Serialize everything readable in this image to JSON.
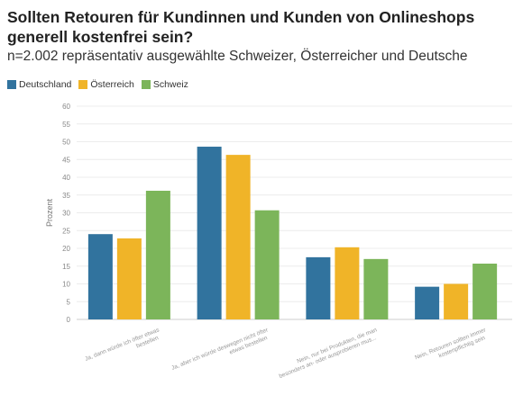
{
  "title": "Sollten Retouren für Kundinnen und Kunden von Onlineshops generell kostenfrei sein?",
  "subtitle": "n=2.002 repräsentativ ausgewählte Schweizer, Österreicher und Deutsche",
  "legend": [
    {
      "name": "Deutschland",
      "color": "#31739e"
    },
    {
      "name": "Österreich",
      "color": "#f0b428"
    },
    {
      "name": "Schweiz",
      "color": "#7cb55a"
    }
  ],
  "chart_data": {
    "type": "bar",
    "ylabel": "Prozent",
    "ylim": [
      0,
      60
    ],
    "yticks": [
      0,
      5,
      10,
      15,
      20,
      25,
      30,
      35,
      40,
      45,
      50,
      55,
      60
    ],
    "grid": true,
    "legend_position": "top-left",
    "categories": [
      [
        "Ja, dann würde ich öfter etwas",
        "bestellen"
      ],
      [
        "Ja, aber ich würde deswegen nicht öfter",
        "etwas bestellen"
      ],
      [
        "Nein, nur bei Produkten, die man",
        "besonders an- oder ausprobieren mus..."
      ],
      [
        "Nein, Retouren sollten immer",
        "kostenpflichtig sein"
      ]
    ],
    "series": [
      {
        "name": "Deutschland",
        "color": "#31739e",
        "values": [
          24,
          48.6,
          17.5,
          9.2
        ]
      },
      {
        "name": "Österreich",
        "color": "#f0b428",
        "values": [
          22.8,
          46.3,
          20.3,
          10
        ]
      },
      {
        "name": "Schweiz",
        "color": "#7cb55a",
        "values": [
          36.2,
          30.7,
          17,
          15.7
        ]
      }
    ]
  }
}
